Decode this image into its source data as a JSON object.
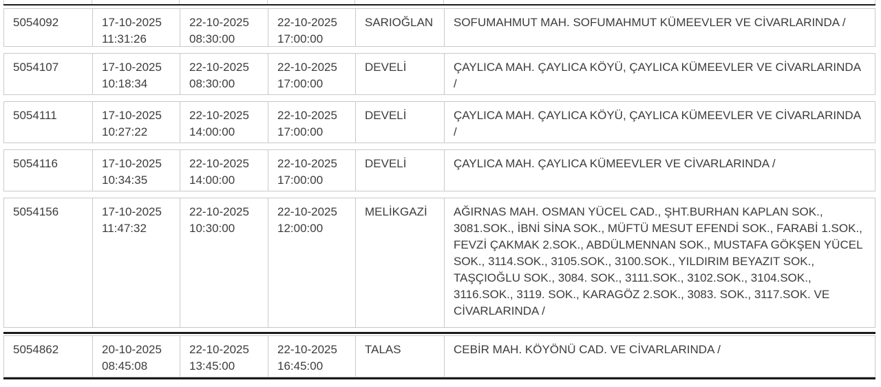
{
  "colors": {
    "background": "#ffffff",
    "row_border": "#c9c9c9",
    "heavy_line": "#1a1a1a",
    "text": "#3c3c3c"
  },
  "table": {
    "rows": [
      {
        "id": "5054092",
        "recorded": {
          "date": "17-10-2025",
          "time": "11:31:26"
        },
        "start": {
          "date": "22-10-2025",
          "time": "08:30:00"
        },
        "end": {
          "date": "22-10-2025",
          "time": "17:00:00"
        },
        "district": "SARIOĞLAN",
        "location": "SOFUMAHMUT MAH. SOFUMAHMUT KÜMEEVLER VE CİVARLARINDA /"
      },
      {
        "id": "5054107",
        "recorded": {
          "date": "17-10-2025",
          "time": "10:18:34"
        },
        "start": {
          "date": "22-10-2025",
          "time": "08:30:00"
        },
        "end": {
          "date": "22-10-2025",
          "time": "17:00:00"
        },
        "district": "DEVELİ",
        "location": "ÇAYLICA MAH. ÇAYLICA KÖYÜ, ÇAYLICA KÜMEEVLER VE CİVARLARINDA /"
      },
      {
        "id": "5054111",
        "recorded": {
          "date": "17-10-2025",
          "time": "10:27:22"
        },
        "start": {
          "date": "22-10-2025",
          "time": "14:00:00"
        },
        "end": {
          "date": "22-10-2025",
          "time": "17:00:00"
        },
        "district": "DEVELİ",
        "location": "ÇAYLICA MAH. ÇAYLICA KÖYÜ, ÇAYLICA KÜMEEVLER VE CİVARLARINDA /"
      },
      {
        "id": "5054116",
        "recorded": {
          "date": "17-10-2025",
          "time": "10:34:35"
        },
        "start": {
          "date": "22-10-2025",
          "time": "14:00:00"
        },
        "end": {
          "date": "22-10-2025",
          "time": "17:00:00"
        },
        "district": "DEVELİ",
        "location": "ÇAYLICA MAH. ÇAYLICA KÜMEEVLER VE CİVARLARINDA /"
      },
      {
        "id": "5054156",
        "recorded": {
          "date": "17-10-2025",
          "time": "11:47:32"
        },
        "start": {
          "date": "22-10-2025",
          "time": "10:30:00"
        },
        "end": {
          "date": "22-10-2025",
          "time": "12:00:00"
        },
        "district": "MELİKGAZİ",
        "location": "AĞIRNAS MAH. OSMAN YÜCEL CAD., ŞHT.BURHAN KAPLAN SOK., 3081.SOK., İBNİ SİNA SOK., MÜFTÜ MESUT EFENDİ SOK., FARABİ 1.SOK., FEVZİ ÇAKMAK 2.SOK., ABDÜLMENNAN SOK., MUSTAFA GÖKŞEN YÜCEL SOK., 3114.SOK., 3105.SOK., 3100.SOK., YILDIRIM BEYAZIT SOK., TAŞÇIOĞLU SOK., 3084. SOK., 3111.SOK., 3102.SOK., 3104.SOK., 3116.SOK., 3119. SOK., KARAGÖZ 2.SOK., 3083. SOK., 3117.SOK. VE CİVARLARINDA /"
      },
      {
        "id": "5054862",
        "recorded": {
          "date": "20-10-2025",
          "time": "08:45:08"
        },
        "start": {
          "date": "22-10-2025",
          "time": "13:45:00"
        },
        "end": {
          "date": "22-10-2025",
          "time": "16:45:00"
        },
        "district": "TALAS",
        "location": "CEBİR MAH. KÖYÖNÜ CAD. VE CİVARLARINDA /"
      }
    ]
  }
}
